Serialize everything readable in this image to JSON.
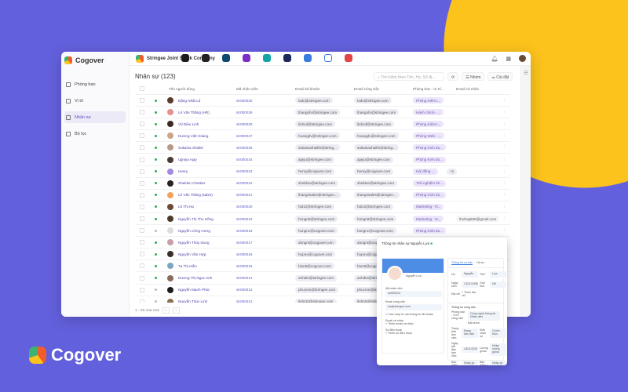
{
  "brand": {
    "name": "Cogover"
  },
  "app": {
    "logo": "Cogover",
    "company": "Stringee Joint Stock Company",
    "app_colors": [
      "#1b1b1b",
      "#222",
      "#0d4b6e",
      "#7b2fc9",
      "#16a3a8",
      "#1b2a5c",
      "#3a7be0",
      "#ffffff",
      "#e04646"
    ]
  },
  "sidebar": {
    "items": [
      {
        "label": "Phòng ban",
        "icon": "org-icon"
      },
      {
        "label": "Vị trí",
        "icon": "briefcase-icon"
      },
      {
        "label": "Nhân sự",
        "icon": "users-icon",
        "active": true
      },
      {
        "label": "Bộ lọc",
        "icon": "filter-icon"
      }
    ]
  },
  "page": {
    "title": "Nhân sự (123)",
    "search_placeholder": "Tìm kiếm theo Tên, Họ, Số đị...",
    "group_label": "Nhóm",
    "settings_label": "Cài đặt",
    "pagination": "1 - 20 của 123"
  },
  "table": {
    "headers": [
      "Tên người dùng",
      "Mã nhân viên",
      "Email tài khoản",
      "Email công việc",
      "Phòng ban - Vị trí...",
      "Email cá nhân"
    ],
    "rows": [
      [
        "Đặng Nhật Lộ",
        "str000030",
        "lodn@stringee.com",
        "lodn@stringee.com",
        "Phòng Kiểm t...",
        "",
        "active",
        "#5a3b2e"
      ],
      [
        "Lê Văn Thắng (HR)",
        "str000029",
        "thangnhr@stringee.com",
        "thangnhr@stringee.com",
        "Hành chính - ...",
        "",
        "active",
        "#e89090"
      ],
      [
        "Vũ Diệu Linh",
        "str000028",
        "linhvd@stringee.com",
        "linhvd@stringee.com",
        "Phòng Kiểm t...",
        "",
        "active",
        "#3b2a22"
      ],
      [
        "Dương Việt Hoàng",
        "str000027",
        "hoangdv@stringee.com",
        "hoangdv@stringee.com",
        "Phòng Web - ...",
        "",
        "active",
        "#c9a58a"
      ],
      [
        "Sukaina Shaikh",
        "str000026",
        "sukainashaikh@string...",
        "sukainashaikh@string...",
        "Phòng Kinh do...",
        "",
        "active",
        "#b79a86"
      ],
      [
        "Ujjniya Ajay",
        "str000024",
        "ajayu@stringee.com",
        "ajayu@stringee.com",
        "Phòng Kinh do...",
        "",
        "active",
        "#4a3a33"
      ],
      [
        "Henry",
        "str000023",
        "henry@cogover.com",
        "henry@cogover.com",
        "Hội đồng ...",
        "",
        "active",
        "#a48ad8",
        "+1"
      ],
      [
        "Sheldon Chettiar",
        "str000022",
        "sheldon@stringee.com",
        "sheldon@stringee.com",
        "Trải nghiệm kh...",
        "",
        "active",
        "#2b2220"
      ],
      [
        "Lê Văn Thắng (sales)",
        "str000021",
        "thangnsales@stringee...",
        "thangnsales@stringee...",
        "Phòng Kinh do...",
        "",
        "active",
        "#f3a25c"
      ],
      [
        "Lê Thị Hạ",
        "str000020",
        "hal12@stringee.com",
        "hal12@stringee.com",
        "Marketing - N...",
        "",
        "active",
        "#6b4a36"
      ],
      [
        "Nguyễn Thị Thu Hồng",
        "str000019",
        "hongntt@stringee.com",
        "hongntt@stringee.com",
        "Marketing - N...",
        "thuhog836@gmail.com",
        "active",
        "#4a3a2a"
      ],
      [
        "Nguyễn Công Hưng",
        "str000018",
        "hungnc@cogover.com",
        "hungnc@cogover.com",
        "Phòng Kinh do...",
        "",
        "inactive",
        "#ddd"
      ],
      [
        "Nguyễn Thùy Dung",
        "str000017",
        "dungnt@cogover.com",
        "dungnt@cogover.com",
        "",
        "",
        "active",
        "#c9a0a8"
      ],
      [
        "Nguyễn Văn Hợp",
        "str000016",
        "hopnv@cogover.com",
        "hopnv@cogover.com",
        "",
        "",
        "active",
        "#3a2e2a"
      ],
      [
        "Tạ Thị Hiền",
        "str000015",
        "hientt@cogover.com",
        "hientt@cogover.com",
        "",
        "",
        "active",
        "#7aa8c0"
      ],
      [
        "Dương Thị Ngọc Anh",
        "str000014",
        "anhdtn@stringee.com",
        "anhdtn@stringee.com",
        "",
        "",
        "active",
        "#8a6a5a"
      ],
      [
        "Nguyễn Mạnh Phúc",
        "str000013",
        "phucnm@stringee.com",
        "phucnm@stringee.com",
        "",
        "",
        "inactive",
        "#1e1a1a"
      ],
      [
        "Nguyễn Thùy Linh",
        "str000012",
        "linhnt3@stringee.com",
        "linhnt3@stringee.com",
        "",
        "",
        "inactive",
        "#8a7050"
      ]
    ]
  },
  "detail": {
    "title": "Thông tin nhân sự Nguyễn Lựa",
    "user_name": "Nguyễn Lựa",
    "employee_code_label": "Mã nhân viên",
    "employee_code": "str000013",
    "work_email_label": "Email công việc",
    "work_email": "lua@stringee.com",
    "checkbox_label": "Sao chép từ các thông tin tài khoản",
    "social_label": "Email cá nhân",
    "add_social": "+ Thêm email cá nhân",
    "phone_label": "Số điện thoại",
    "add_phone": "+ Thêm số điện thoại",
    "tabs": [
      "Thông tin cơ bản",
      "Hồ sơ"
    ],
    "fields": [
      [
        "Họ",
        "Nguyễn"
      ],
      [
        "Tên*",
        "Lựa"
      ],
      [
        "Ngày sinh",
        "13/11/1998"
      ],
      [
        "Giới tính",
        "Nữ"
      ],
      [
        "Địa chỉ",
        "+ Thêm địa chỉ"
      ]
    ],
    "work_title": "Thông tin công việc",
    "dept_label": "Phòng ban - Vị trí công việc",
    "dept_value": "Công nghệ thông tin - Nhân viên",
    "add_dept": "Đặt chính",
    "work_fields": [
      [
        "Trạng thái làm việc",
        "Đang làm việc"
      ],
      [
        "Kiểu nhân sự",
        "Chính thức"
      ],
      [
        "Ngày bắt đầu làm việc",
        "18/11/2021"
      ],
      [
        "Lương gross",
        "Nhập lương gross"
      ],
      [
        "Bảo hiểm xã hội",
        "Nhập số bảo hiểm"
      ],
      [
        "Bảo hiểm y tế",
        "Nhập số bảo hiểm"
      ],
      [
        "Bảo hiểm thất nghiệp",
        "Nhập số bảo hiểm"
      ],
      [
        "Thuế thu nhập cá nhân",
        "Nhập mã số thuế"
      ]
    ]
  }
}
